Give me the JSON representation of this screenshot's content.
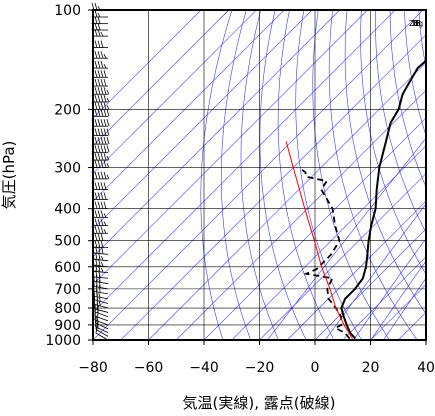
{
  "chart_data": {
    "type": "line",
    "xlabel": "気温(実線), 露点(破線)",
    "ylabel": "気圧(hPa)",
    "xlim": [
      -80,
      40
    ],
    "ylim": [
      1000,
      100
    ],
    "y_scale": "log",
    "x_ticks": [
      "−80",
      "−60",
      "−40",
      "−20",
      "0",
      "20",
      "40"
    ],
    "x_tick_values": [
      -80,
      -60,
      -40,
      -20,
      0,
      20,
      40
    ],
    "y_ticks": [
      "100",
      "200",
      "300",
      "400",
      "500",
      "600",
      "700",
      "800",
      "900",
      "1000"
    ],
    "y_tick_values": [
      100,
      200,
      300,
      400,
      500,
      600,
      700,
      800,
      900,
      1000
    ],
    "mixing_ratio_labels": [
      "1",
      "5",
      "10",
      "15",
      "20g"
    ],
    "mixing_ratio_values": [
      1,
      5,
      10,
      15,
      20
    ],
    "colors": {
      "temperature": "#000000",
      "dewpoint": "#000000",
      "reference": "#ff0000",
      "guide_lines": "#3a3aff",
      "grid": "#000000"
    },
    "series": [
      {
        "style": "solid",
        "points": [
          {
            "p": 990,
            "t": 14
          },
          {
            "p": 950,
            "t": 10
          },
          {
            "p": 900,
            "t": 6
          },
          {
            "p": 850,
            "t": 2
          },
          {
            "p": 800,
            "t": -2
          },
          {
            "p": 750,
            "t": -4
          },
          {
            "p": 700,
            "t": -4
          },
          {
            "p": 650,
            "t": -5
          },
          {
            "p": 600,
            "t": -8
          },
          {
            "p": 550,
            "t": -12
          },
          {
            "p": 500,
            "t": -16.5
          },
          {
            "p": 450,
            "t": -21
          },
          {
            "p": 400,
            "t": -25.5
          },
          {
            "p": 350,
            "t": -32
          },
          {
            "p": 300,
            "t": -39
          },
          {
            "p": 250,
            "t": -46
          },
          {
            "p": 220,
            "t": -51
          },
          {
            "p": 200,
            "t": -53
          },
          {
            "p": 180,
            "t": -57
          },
          {
            "p": 150,
            "t": -61
          },
          {
            "p": 130,
            "t": -60
          },
          {
            "p": 120,
            "t": -62
          },
          {
            "p": 110,
            "t": -63
          },
          {
            "p": 100,
            "t": -64
          }
        ]
      },
      {
        "style": "dashed",
        "points": [
          {
            "p": 990,
            "t": 12
          },
          {
            "p": 950,
            "t": 8
          },
          {
            "p": 920,
            "t": 3
          },
          {
            "p": 900,
            "t": 4
          },
          {
            "p": 850,
            "t": 1
          },
          {
            "p": 800,
            "t": -4
          },
          {
            "p": 750,
            "t": -10
          },
          {
            "p": 700,
            "t": -14
          },
          {
            "p": 650,
            "t": -16
          },
          {
            "p": 630,
            "t": -27
          },
          {
            "p": 610,
            "t": -25
          },
          {
            "p": 550,
            "t": -25
          },
          {
            "p": 500,
            "t": -27
          },
          {
            "p": 450,
            "t": -34
          },
          {
            "p": 400,
            "t": -41
          },
          {
            "p": 350,
            "t": -52
          },
          {
            "p": 330,
            "t": -53
          },
          {
            "p": 320,
            "t": -62
          },
          {
            "p": 310,
            "t": -64
          },
          {
            "p": 305,
            "t": -66
          }
        ]
      },
      {
        "style": "reference",
        "points": [
          {
            "p": 990,
            "t": 13
          },
          {
            "p": 900,
            "t": 5
          },
          {
            "p": 800,
            "t": -4
          },
          {
            "p": 700,
            "t": -13
          },
          {
            "p": 600,
            "t": -24
          },
          {
            "p": 500,
            "t": -36
          },
          {
            "p": 400,
            "t": -51
          },
          {
            "p": 300,
            "t": -70
          },
          {
            "p": 250,
            "t": -82
          }
        ]
      }
    ],
    "wind_barbs": [
      {
        "p": 1000,
        "dir": 300,
        "speed": 10
      },
      {
        "p": 975,
        "dir": 300,
        "speed": 10
      },
      {
        "p": 950,
        "dir": 295,
        "speed": 15
      },
      {
        "p": 925,
        "dir": 295,
        "speed": 15
      },
      {
        "p": 900,
        "dir": 290,
        "speed": 15
      },
      {
        "p": 875,
        "dir": 290,
        "speed": 20
      },
      {
        "p": 850,
        "dir": 290,
        "speed": 20
      },
      {
        "p": 825,
        "dir": 285,
        "speed": 20
      },
      {
        "p": 800,
        "dir": 285,
        "speed": 25
      },
      {
        "p": 775,
        "dir": 285,
        "speed": 25
      },
      {
        "p": 750,
        "dir": 280,
        "speed": 25
      },
      {
        "p": 725,
        "dir": 280,
        "speed": 30
      },
      {
        "p": 700,
        "dir": 280,
        "speed": 30
      },
      {
        "p": 675,
        "dir": 280,
        "speed": 30
      },
      {
        "p": 650,
        "dir": 275,
        "speed": 30
      },
      {
        "p": 625,
        "dir": 275,
        "speed": 35
      },
      {
        "p": 600,
        "dir": 275,
        "speed": 35
      },
      {
        "p": 575,
        "dir": 275,
        "speed": 35
      },
      {
        "p": 550,
        "dir": 275,
        "speed": 40
      },
      {
        "p": 525,
        "dir": 270,
        "speed": 40
      },
      {
        "p": 500,
        "dir": 270,
        "speed": 40
      },
      {
        "p": 475,
        "dir": 270,
        "speed": 45
      },
      {
        "p": 450,
        "dir": 270,
        "speed": 45
      },
      {
        "p": 425,
        "dir": 270,
        "speed": 45
      },
      {
        "p": 400,
        "dir": 270,
        "speed": 50
      },
      {
        "p": 375,
        "dir": 270,
        "speed": 50
      },
      {
        "p": 350,
        "dir": 270,
        "speed": 50
      },
      {
        "p": 325,
        "dir": 270,
        "speed": 55
      },
      {
        "p": 300,
        "dir": 270,
        "speed": 55
      },
      {
        "p": 285,
        "dir": 270,
        "speed": 55
      },
      {
        "p": 270,
        "dir": 270,
        "speed": 60
      },
      {
        "p": 255,
        "dir": 270,
        "speed": 60
      },
      {
        "p": 240,
        "dir": 270,
        "speed": 60
      },
      {
        "p": 225,
        "dir": 270,
        "speed": 60
      },
      {
        "p": 210,
        "dir": 270,
        "speed": 60
      },
      {
        "p": 200,
        "dir": 270,
        "speed": 55
      },
      {
        "p": 190,
        "dir": 270,
        "speed": 55
      },
      {
        "p": 180,
        "dir": 270,
        "speed": 55
      },
      {
        "p": 170,
        "dir": 270,
        "speed": 50
      },
      {
        "p": 160,
        "dir": 270,
        "speed": 50
      },
      {
        "p": 150,
        "dir": 270,
        "speed": 45
      },
      {
        "p": 140,
        "dir": 270,
        "speed": 45
      },
      {
        "p": 130,
        "dir": 270,
        "speed": 40
      },
      {
        "p": 120,
        "dir": 270,
        "speed": 35
      },
      {
        "p": 115,
        "dir": 270,
        "speed": 30
      },
      {
        "p": 110,
        "dir": 270,
        "speed": 30
      },
      {
        "p": 105,
        "dir": 270,
        "speed": 25
      },
      {
        "p": 100,
        "dir": 270,
        "speed": 25
      }
    ]
  }
}
